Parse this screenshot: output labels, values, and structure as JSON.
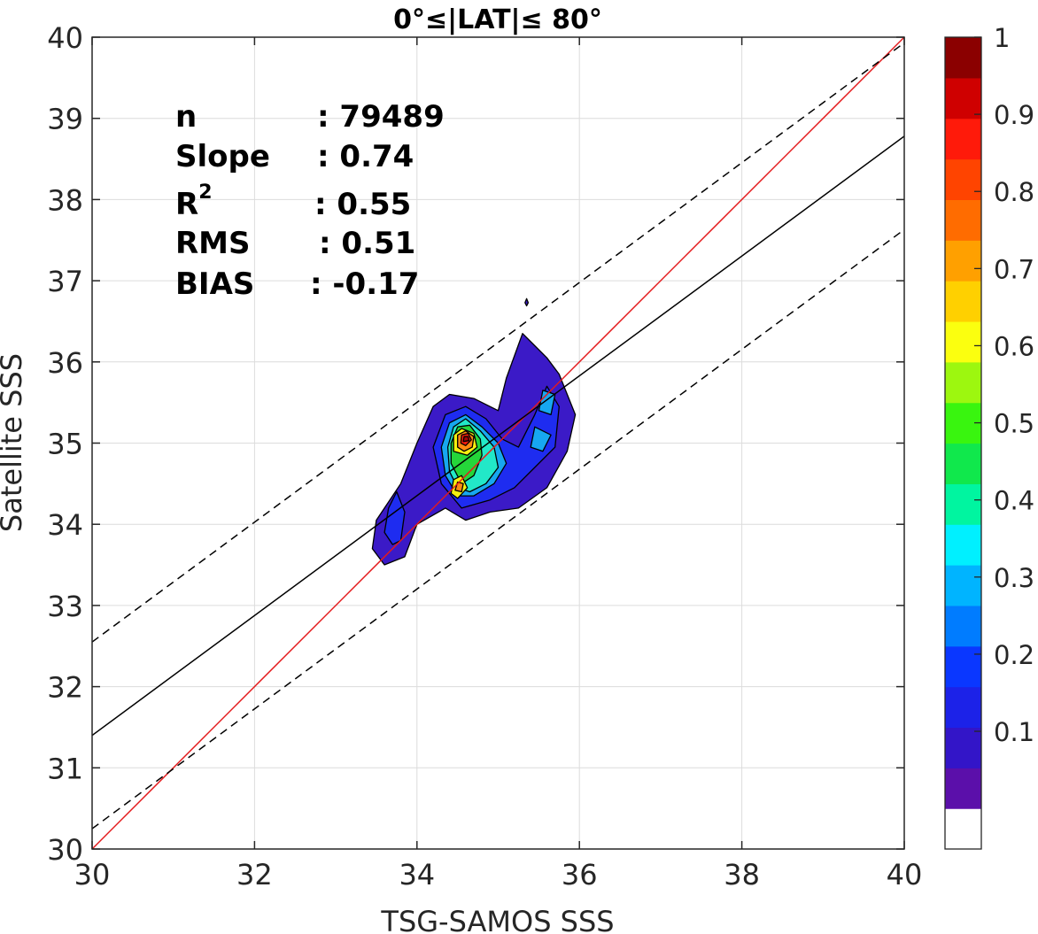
{
  "chart_data": {
    "type": "contour",
    "title": "0°≤|LAT|≤ 80°",
    "xlabel": "TSG-SAMOS SSS",
    "ylabel": "Satellite SSS",
    "xlim": [
      30,
      40
    ],
    "ylim": [
      30,
      40
    ],
    "xticks": [
      "30",
      "32",
      "34",
      "36",
      "38",
      "40"
    ],
    "yticks": [
      "30",
      "31",
      "32",
      "33",
      "34",
      "35",
      "36",
      "37",
      "38",
      "39",
      "40"
    ],
    "grid": true,
    "stats": [
      {
        "label": "n",
        "value": ": 79489"
      },
      {
        "label": "Slope",
        "value": ": 0.74"
      },
      {
        "label": "R",
        "sup": "2",
        "value": ": 0.55"
      },
      {
        "label": "RMS",
        "value": ": 0.51"
      },
      {
        "label": "BIAS",
        "value": ": -0.17"
      }
    ],
    "lines": [
      {
        "role": "one-to-one",
        "color": "#e41a1c",
        "style": "solid",
        "points": [
          [
            30,
            30
          ],
          [
            40,
            40
          ]
        ]
      },
      {
        "role": "fit",
        "color": "#000000",
        "style": "solid",
        "points": [
          [
            30,
            31.4
          ],
          [
            40,
            38.78
          ]
        ]
      },
      {
        "role": "fit-upper",
        "color": "#000000",
        "style": "dashed",
        "points": [
          [
            30,
            32.55
          ],
          [
            40,
            39.93
          ]
        ]
      },
      {
        "role": "fit-lower",
        "color": "#000000",
        "style": "dashed",
        "points": [
          [
            30,
            30.25
          ],
          [
            40,
            37.63
          ]
        ]
      }
    ],
    "contours": [
      {
        "level": 0.05,
        "polygons": [
          [
            [
              33.45,
              33.7
            ],
            [
              33.5,
              34.05
            ],
            [
              33.8,
              34.5
            ],
            [
              34.0,
              35.0
            ],
            [
              34.2,
              35.45
            ],
            [
              34.4,
              35.6
            ],
            [
              34.7,
              35.55
            ],
            [
              35.0,
              35.4
            ],
            [
              35.1,
              35.8
            ],
            [
              35.3,
              36.35
            ],
            [
              35.45,
              36.2
            ],
            [
              35.6,
              36.05
            ],
            [
              35.75,
              35.85
            ],
            [
              35.95,
              35.35
            ],
            [
              35.85,
              34.9
            ],
            [
              35.6,
              34.45
            ],
            [
              35.25,
              34.2
            ],
            [
              34.9,
              34.15
            ],
            [
              34.6,
              34.05
            ],
            [
              34.35,
              34.2
            ],
            [
              34.0,
              34.0
            ],
            [
              33.85,
              33.6
            ],
            [
              33.6,
              33.5
            ]
          ],
          [
            [
              35.33,
              36.73
            ],
            [
              35.35,
              36.78
            ],
            [
              35.37,
              36.73
            ],
            [
              35.35,
              36.69
            ]
          ]
        ],
        "color": "#3b1ac7"
      },
      {
        "level": 0.1,
        "polygons": [
          [
            [
              33.6,
              33.9
            ],
            [
              33.65,
              34.2
            ],
            [
              33.75,
              34.4
            ],
            [
              33.85,
              34.15
            ],
            [
              33.8,
              33.8
            ],
            [
              33.7,
              33.75
            ]
          ],
          [
            [
              34.3,
              34.5
            ],
            [
              34.2,
              34.95
            ],
            [
              34.35,
              35.35
            ],
            [
              34.6,
              35.45
            ],
            [
              34.85,
              35.3
            ],
            [
              35.05,
              35.05
            ],
            [
              35.25,
              34.95
            ],
            [
              35.45,
              35.35
            ],
            [
              35.6,
              35.7
            ],
            [
              35.75,
              35.45
            ],
            [
              35.7,
              34.95
            ],
            [
              35.45,
              34.7
            ],
            [
              35.2,
              34.45
            ],
            [
              34.9,
              34.3
            ],
            [
              34.55,
              34.2
            ]
          ]
        ],
        "color": "#1e2cf0"
      },
      {
        "level": 0.2,
        "polygons": [
          [
            [
              34.35,
              34.6
            ],
            [
              34.3,
              34.95
            ],
            [
              34.4,
              35.25
            ],
            [
              34.6,
              35.35
            ],
            [
              34.8,
              35.2
            ],
            [
              35.0,
              35.0
            ],
            [
              35.1,
              34.75
            ],
            [
              34.95,
              34.5
            ],
            [
              34.7,
              34.35
            ],
            [
              34.5,
              34.35
            ]
          ],
          [
            [
              35.5,
              35.4
            ],
            [
              35.55,
              35.65
            ],
            [
              35.7,
              35.6
            ],
            [
              35.65,
              35.35
            ]
          ],
          [
            [
              35.4,
              34.95
            ],
            [
              35.45,
              35.2
            ],
            [
              35.65,
              35.1
            ],
            [
              35.55,
              34.9
            ]
          ]
        ],
        "color": "#17a7f0"
      },
      {
        "level": 0.3,
        "polygons": [
          [
            [
              34.4,
              34.65
            ],
            [
              34.38,
              34.95
            ],
            [
              34.45,
              35.2
            ],
            [
              34.6,
              35.3
            ],
            [
              34.78,
              35.15
            ],
            [
              34.95,
              34.95
            ],
            [
              35.0,
              34.7
            ],
            [
              34.85,
              34.5
            ],
            [
              34.65,
              34.4
            ],
            [
              34.5,
              34.45
            ]
          ]
        ],
        "color": "#22e8c8"
      },
      {
        "level": 0.4,
        "polygons": [
          [
            [
              34.42,
              34.75
            ],
            [
              34.42,
              35.0
            ],
            [
              34.5,
              35.2
            ],
            [
              34.65,
              35.22
            ],
            [
              34.78,
              35.05
            ],
            [
              34.8,
              34.85
            ],
            [
              34.7,
              34.6
            ],
            [
              34.55,
              34.5
            ]
          ]
        ],
        "color": "#25d63a"
      },
      {
        "level": 0.55,
        "polygons": [
          [
            [
              34.45,
              34.9
            ],
            [
              34.45,
              35.1
            ],
            [
              34.55,
              35.18
            ],
            [
              34.7,
              35.12
            ],
            [
              34.74,
              34.95
            ],
            [
              34.62,
              34.85
            ]
          ],
          [
            [
              34.42,
              34.38
            ],
            [
              34.45,
              34.55
            ],
            [
              34.55,
              34.6
            ],
            [
              34.62,
              34.45
            ],
            [
              34.5,
              34.32
            ]
          ]
        ],
        "color": "#f5f00f"
      },
      {
        "level": 0.7,
        "polygons": [
          [
            [
              34.5,
              34.95
            ],
            [
              34.5,
              35.1
            ],
            [
              34.6,
              35.15
            ],
            [
              34.7,
              35.08
            ],
            [
              34.68,
              34.95
            ],
            [
              34.58,
              34.9
            ]
          ],
          [
            [
              34.47,
              34.42
            ],
            [
              34.5,
              34.52
            ],
            [
              34.57,
              34.5
            ],
            [
              34.55,
              34.4
            ]
          ]
        ],
        "color": "#ff8a12"
      },
      {
        "level": 0.85,
        "polygons": [
          [
            [
              34.54,
              35.0
            ],
            [
              34.55,
              35.1
            ],
            [
              34.63,
              35.12
            ],
            [
              34.67,
              35.04
            ],
            [
              34.6,
              34.97
            ]
          ]
        ],
        "color": "#f31a0c"
      },
      {
        "level": 0.95,
        "polygons": [
          [
            [
              34.57,
              35.02
            ],
            [
              34.58,
              35.08
            ],
            [
              34.63,
              35.08
            ],
            [
              34.64,
              35.03
            ]
          ]
        ],
        "color": "#a50606"
      }
    ],
    "colorbar": {
      "ticks": [
        "0.1",
        "0.2",
        "0.3",
        "0.4",
        "0.5",
        "0.6",
        "0.7",
        "0.8",
        "0.9",
        "1"
      ],
      "colors": [
        "#ffffff",
        "#5b0faa",
        "#3315c8",
        "#1c22e8",
        "#0a37ff",
        "#007cff",
        "#00b4ff",
        "#00f0ff",
        "#00f5a0",
        "#10e84c",
        "#39f50f",
        "#9df70f",
        "#fbff0f",
        "#ffd000",
        "#ffa000",
        "#ff6c00",
        "#ff4400",
        "#ff1a0a",
        "#cf0000",
        "#8b0000"
      ]
    }
  }
}
